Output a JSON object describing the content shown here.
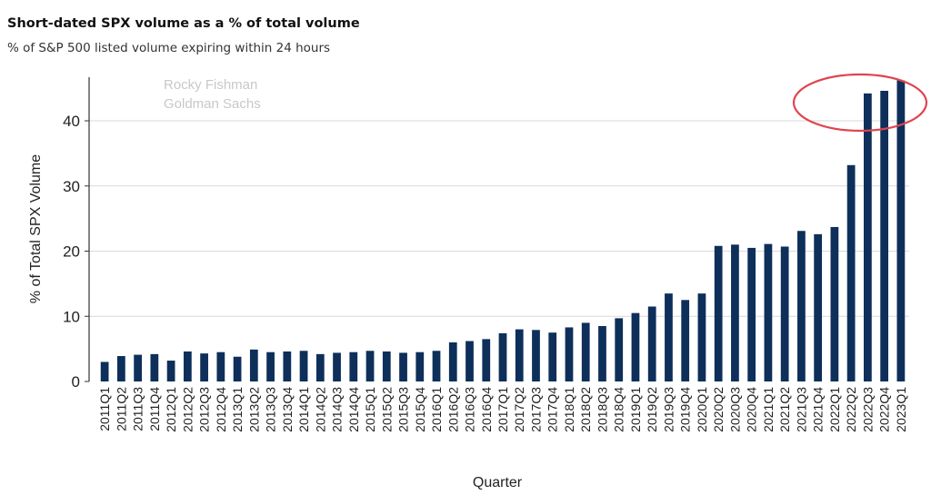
{
  "header": {
    "title": "Short-dated SPX volume as a % of total volume",
    "subtitle": "% of S&P 500 listed volume expiring within 24 hours"
  },
  "watermark": {
    "line1": "Rocky Fishman",
    "line2": "Goldman Sachs"
  },
  "colors": {
    "bar": "#0d2f5a",
    "grid": "#d9d9d9",
    "highlight": "#e0444e",
    "watermark": "#c8c8c8"
  },
  "chart_data": {
    "type": "bar",
    "xlabel": "Quarter",
    "ylabel": "% of Total SPX Volume",
    "ylim": [
      0,
      47
    ],
    "yticks": [
      0,
      10,
      20,
      30,
      40
    ],
    "grid": "horizontal",
    "annotation": "red ellipse highlighting 2022Q3-2023Q1",
    "categories": [
      "2011Q1",
      "2011Q2",
      "2011Q3",
      "2011Q4",
      "2012Q1",
      "2012Q2",
      "2012Q3",
      "2012Q4",
      "2013Q1",
      "2013Q2",
      "2013Q3",
      "2013Q4",
      "2014Q1",
      "2014Q2",
      "2014Q3",
      "2014Q4",
      "2015Q1",
      "2015Q2",
      "2015Q3",
      "2015Q4",
      "2016Q1",
      "2016Q2",
      "2016Q3",
      "2016Q4",
      "2017Q1",
      "2017Q2",
      "2017Q3",
      "2017Q4",
      "2018Q1",
      "2018Q2",
      "2018Q3",
      "2018Q4",
      "2019Q1",
      "2019Q2",
      "2019Q3",
      "2019Q4",
      "2020Q1",
      "2020Q2",
      "2020Q3",
      "2020Q4",
      "2021Q1",
      "2021Q2",
      "2021Q3",
      "2021Q4",
      "2022Q1",
      "2022Q2",
      "2022Q3",
      "2022Q4",
      "2023Q1"
    ],
    "values": [
      3.0,
      3.9,
      4.1,
      4.2,
      3.2,
      4.6,
      4.3,
      4.5,
      3.8,
      4.9,
      4.5,
      4.6,
      4.7,
      4.2,
      4.4,
      4.5,
      4.7,
      4.6,
      4.4,
      4.5,
      4.7,
      6.0,
      6.2,
      6.5,
      7.4,
      8.0,
      7.9,
      7.5,
      8.3,
      9.0,
      8.5,
      9.7,
      10.5,
      11.5,
      13.5,
      12.5,
      13.5,
      20.8,
      21.0,
      20.5,
      21.1,
      20.7,
      23.1,
      22.6,
      23.7,
      33.2,
      44.2,
      44.6,
      46.2
    ]
  }
}
